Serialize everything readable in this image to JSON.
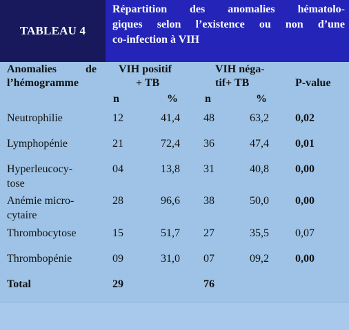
{
  "header": {
    "label": "TABLEAU 4",
    "title_lines": [
      "Répartition des anomalies hématolo-",
      "giques selon l’existence ou non d’une",
      "co-infection à VIH"
    ]
  },
  "columns": {
    "anomaly_line1": "Anomalies de",
    "anomaly_line2": "l’hémogramme",
    "pos_line1": "VIH positif",
    "pos_line2": "+ TB",
    "neg_line1": "VIH néga-",
    "neg_line2": "tif+ TB",
    "pvalue": "P-value",
    "n": "n",
    "pct": "%"
  },
  "rows": [
    {
      "label": [
        "Neutrophilie"
      ],
      "pos_n": "12",
      "pos_pct": "41,4",
      "neg_n": "48",
      "neg_pct": "63,2",
      "p": "0,02",
      "p_bold": true
    },
    {
      "label": [
        "Lymphopénie"
      ],
      "pos_n": "21",
      "pos_pct": "72,4",
      "neg_n": "36",
      "neg_pct": "47,4",
      "p": "0,01",
      "p_bold": true
    },
    {
      "label": [
        "Hyperleucocy-",
        "tose"
      ],
      "pos_n": "04",
      "pos_pct": "13,8",
      "neg_n": "31",
      "neg_pct": "40,8",
      "p": "0,00",
      "p_bold": true
    },
    {
      "label": [
        "Anémie micro-",
        "cytaire"
      ],
      "pos_n": "28",
      "pos_pct": "96,6",
      "neg_n": "38",
      "neg_pct": "50,0",
      "p": "0,00",
      "p_bold": true
    },
    {
      "label": [
        "Thrombocytose"
      ],
      "pos_n": "15",
      "pos_pct": "51,7",
      "neg_n": "27",
      "neg_pct": "35,5",
      "p": "0,07",
      "p_bold": false
    },
    {
      "label": [
        "Thrombopénie"
      ],
      "pos_n": "09",
      "pos_pct": "31,0",
      "neg_n": "07",
      "neg_pct": "09,2",
      "p": "0,00",
      "p_bold": true
    }
  ],
  "total": {
    "label": "Total",
    "pos_n": "29",
    "neg_n": "76"
  }
}
